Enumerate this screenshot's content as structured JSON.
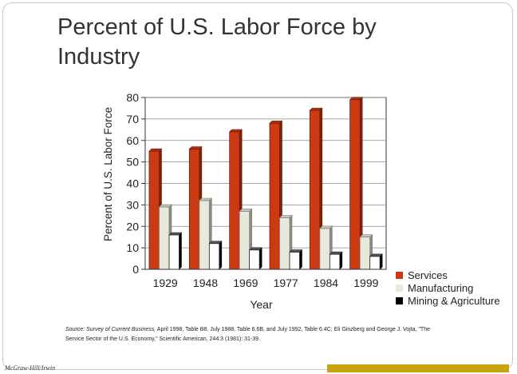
{
  "title": "Percent of U.S. Labor Force by Industry",
  "footer": {
    "logo": "McGraw-Hill/Irwin",
    "bar_color": "#c8a20f"
  },
  "source": {
    "lead": "Source: Survey of Current Business,",
    "text": "April 1998, Table B8, July 1988, Table 6.6B, and July 1992, Table 6.4C; Eli Ginzberg and George J. Vojta, \"The Service Sector of the U.S. Economy,\" Scientific American, 244:3 (1981): 31-39."
  },
  "colors": {
    "services": "#cc3a14",
    "manufacturing": "#e8e8dc",
    "mining_agriculture": "#000000"
  },
  "chart_data": {
    "type": "bar",
    "title": "",
    "xlabel": "Year",
    "ylabel": "Percent of U.S. Labor Force",
    "ylim": [
      0,
      80
    ],
    "yticks": [
      0,
      10,
      20,
      30,
      40,
      50,
      60,
      70,
      80
    ],
    "grid": true,
    "legend_position": "bottom-right",
    "categories": [
      "1929",
      "1948",
      "1969",
      "1977",
      "1984",
      "1999"
    ],
    "series": [
      {
        "name": "Services",
        "color": "#cc3a14",
        "values": [
          55,
          56,
          64,
          68,
          74,
          79
        ]
      },
      {
        "name": "Manufacturing",
        "color": "#e8e8dc",
        "values": [
          29,
          32,
          27,
          24,
          19,
          15
        ]
      },
      {
        "name": "Mining & Agriculture",
        "color": "#000000",
        "values": [
          16,
          12,
          9,
          8,
          7,
          6
        ]
      }
    ]
  }
}
